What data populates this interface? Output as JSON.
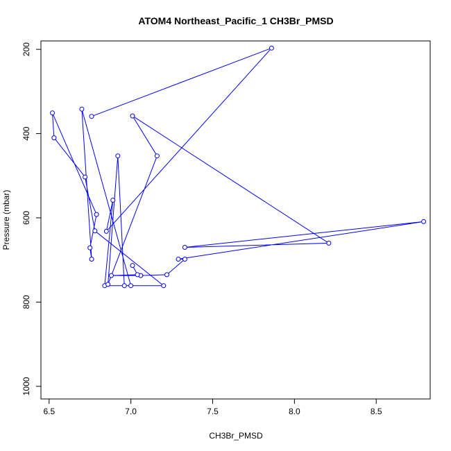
{
  "chart_data": {
    "type": "line",
    "title": "ATOM4 Northeast_Pacific_1 CH3Br_PMSD",
    "xlabel": "CH3Br_PMSD",
    "ylabel": "Pressure (mbar)",
    "xlim": [
      6.45,
      8.83
    ],
    "ylim": [
      1030,
      180
    ],
    "y_reversed": true,
    "grid": false,
    "x_ticks": [
      6.5,
      7.0,
      7.5,
      8.0,
      8.5
    ],
    "x_tick_labels": [
      "6.5",
      "7.0",
      "7.5",
      "8.0",
      "8.5"
    ],
    "y_ticks": [
      200,
      400,
      600,
      800,
      1000
    ],
    "y_tick_labels": [
      "200",
      "400",
      "600",
      "800",
      "1000"
    ],
    "series_color": "#0000ff",
    "series": [
      {
        "points": [
          {
            "x": 6.76,
            "y": 359
          },
          {
            "x": 7.86,
            "y": 197
          },
          {
            "x": 6.85,
            "y": 632
          },
          {
            "x": 6.89,
            "y": 558
          },
          {
            "x": 6.84,
            "y": 761
          },
          {
            "x": 7.0,
            "y": 761
          },
          {
            "x": 6.7,
            "y": 342
          },
          {
            "x": 6.76,
            "y": 698
          },
          {
            "x": 6.75,
            "y": 671
          },
          {
            "x": 6.79,
            "y": 592
          },
          {
            "x": 6.52,
            "y": 351
          },
          {
            "x": 6.53,
            "y": 410
          },
          {
            "x": 6.72,
            "y": 503
          },
          {
            "x": 6.78,
            "y": 631
          },
          {
            "x": 7.2,
            "y": 761
          },
          {
            "x": 6.96,
            "y": 761
          },
          {
            "x": 6.92,
            "y": 453
          },
          {
            "x": 6.86,
            "y": 758
          },
          {
            "x": 7.16,
            "y": 453
          },
          {
            "x": 7.01,
            "y": 358
          },
          {
            "x": 8.21,
            "y": 660
          },
          {
            "x": 7.33,
            "y": 670
          },
          {
            "x": 8.79,
            "y": 609
          },
          {
            "x": 7.29,
            "y": 698
          },
          {
            "x": 7.33,
            "y": 698
          },
          {
            "x": 7.22,
            "y": 735
          },
          {
            "x": 7.06,
            "y": 737
          },
          {
            "x": 6.88,
            "y": 737
          },
          {
            "x": 7.04,
            "y": 735
          },
          {
            "x": 7.01,
            "y": 713
          }
        ]
      }
    ]
  }
}
